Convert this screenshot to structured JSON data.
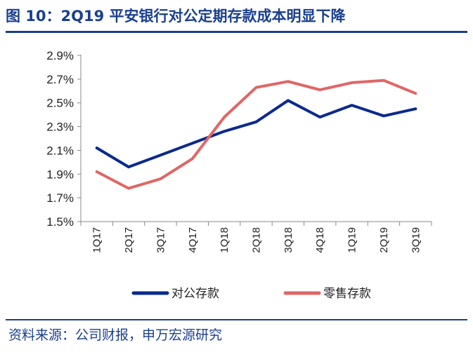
{
  "title": "图 10：2Q19 平安银行对公定期存款成本明显下降",
  "source": "资料来源：公司财报，申万宏源研究",
  "chart_data": {
    "type": "line",
    "categories": [
      "1Q17",
      "2Q17",
      "3Q17",
      "4Q17",
      "1Q18",
      "2Q18",
      "3Q18",
      "4Q18",
      "1Q19",
      "2Q19",
      "3Q19"
    ],
    "series": [
      {
        "name": "对公存款",
        "color": "#0c2a8c",
        "values": [
          2.12,
          1.96,
          2.06,
          2.16,
          2.26,
          2.34,
          2.52,
          2.38,
          2.48,
          2.39,
          2.45
        ]
      },
      {
        "name": "零售存款",
        "color": "#e06666",
        "values": [
          1.92,
          1.78,
          1.86,
          2.03,
          2.38,
          2.63,
          2.68,
          2.61,
          2.67,
          2.69,
          2.58
        ]
      }
    ],
    "ylim": [
      1.5,
      2.9
    ],
    "yticks": [
      "1.5%",
      "1.7%",
      "1.9%",
      "2.1%",
      "2.3%",
      "2.5%",
      "2.7%",
      "2.9%"
    ],
    "xlabel": "",
    "ylabel": "",
    "legend": "bottom"
  }
}
